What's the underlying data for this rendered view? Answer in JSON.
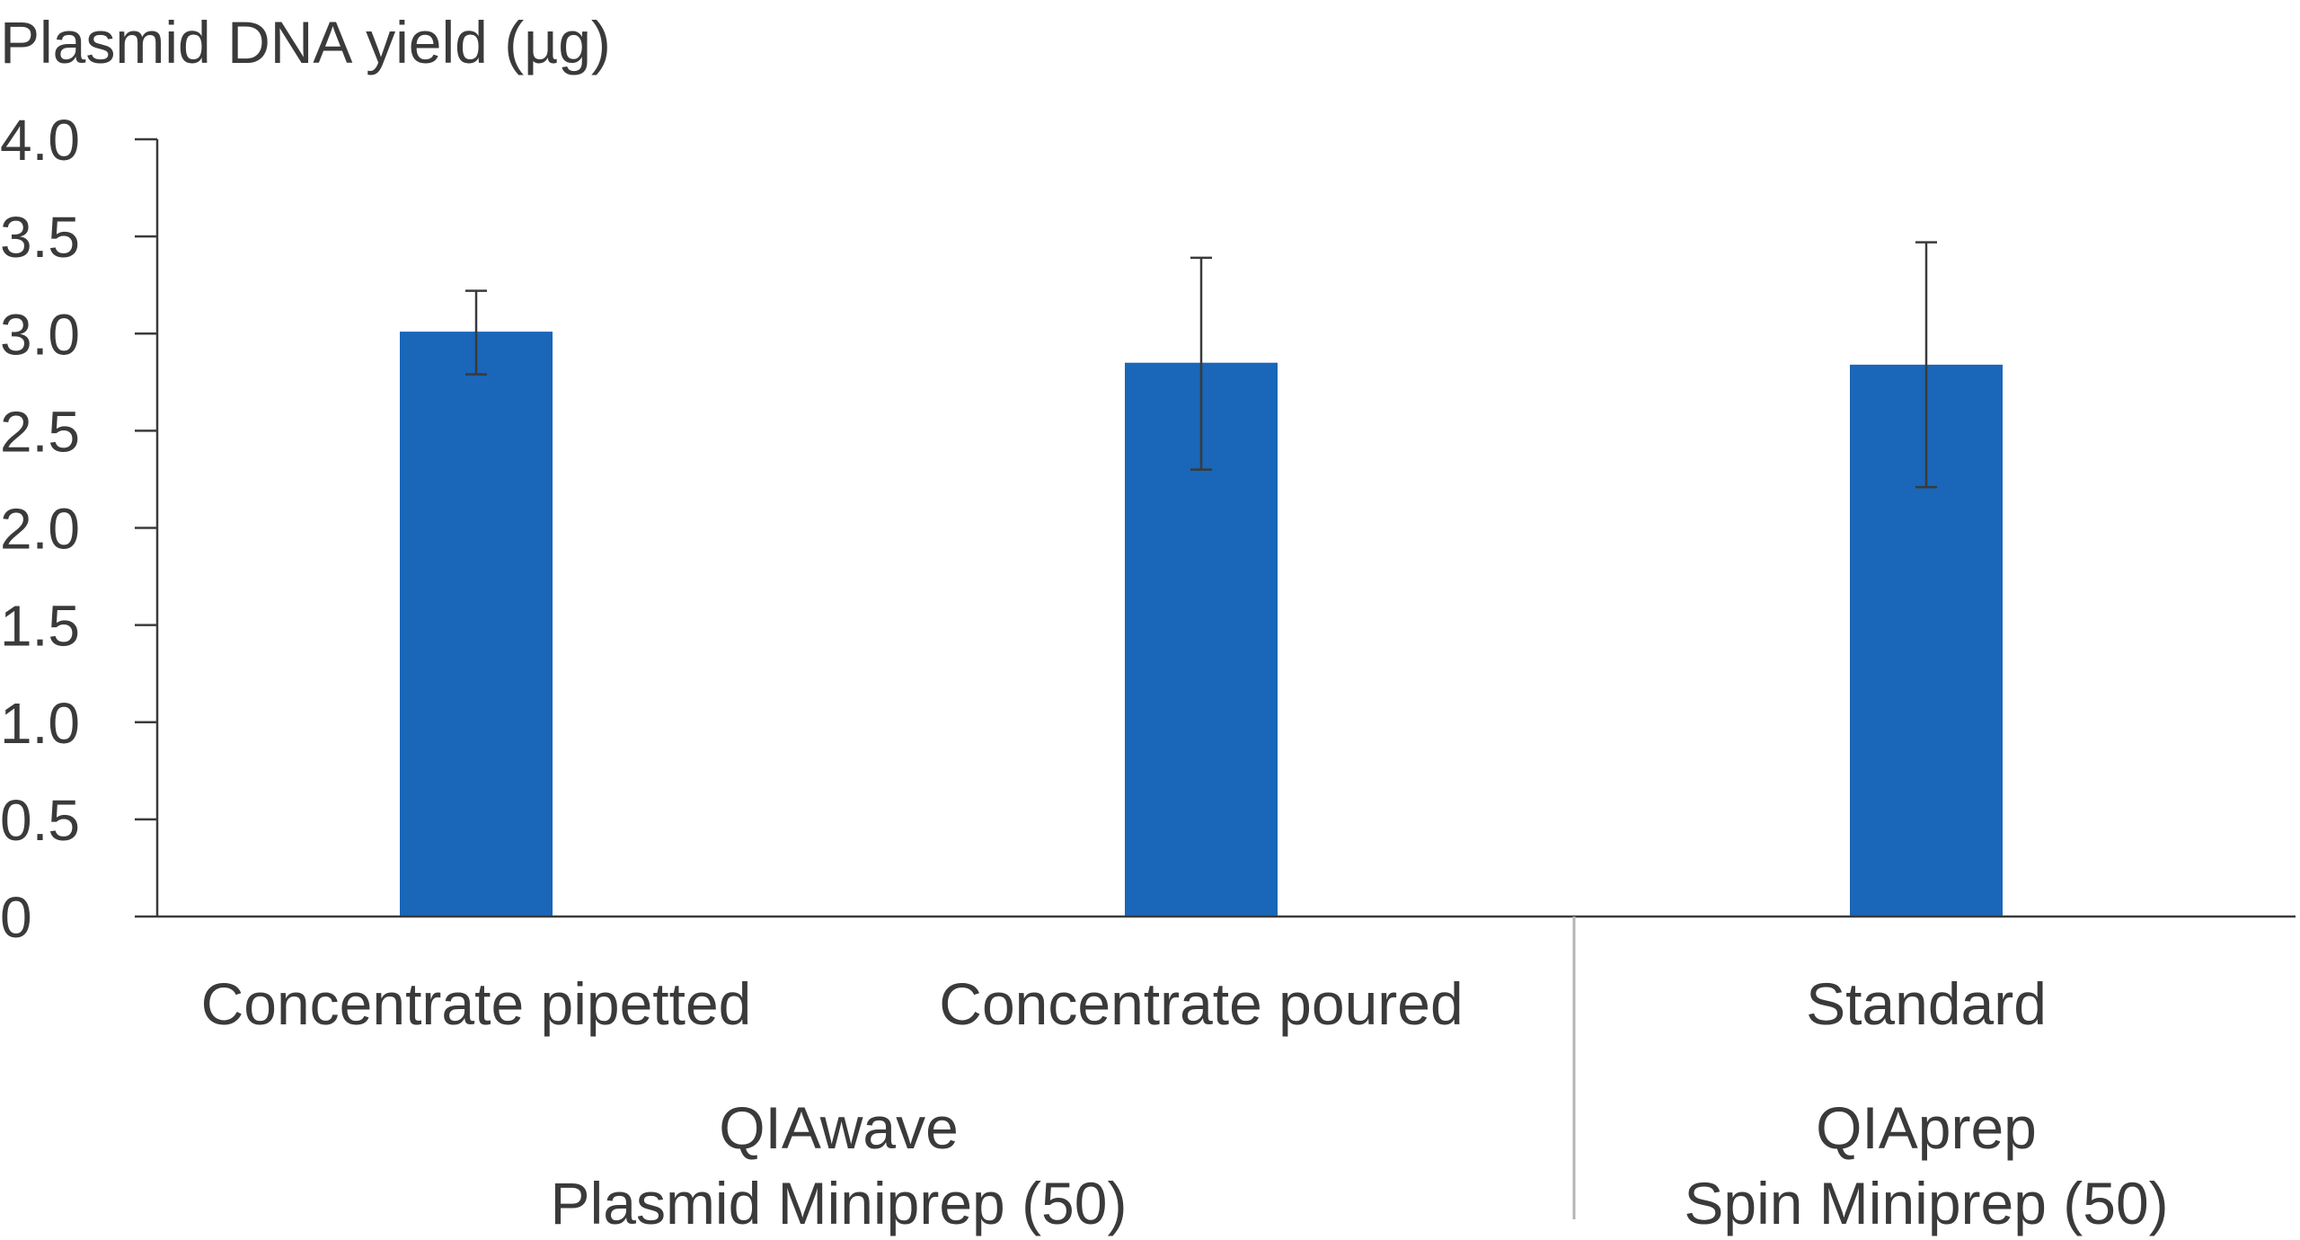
{
  "chart_data": {
    "type": "bar",
    "ylabel": "Plasmid DNA yield (µg)",
    "ylim": [
      0,
      4.0
    ],
    "yticks": [
      {
        "value": 0,
        "label": "0"
      },
      {
        "value": 0.5,
        "label": "0.5"
      },
      {
        "value": 1.0,
        "label": "1.0"
      },
      {
        "value": 1.5,
        "label": "1.5"
      },
      {
        "value": 2.0,
        "label": "2.0"
      },
      {
        "value": 2.5,
        "label": "2.5"
      },
      {
        "value": 3.0,
        "label": "3.0"
      },
      {
        "value": 3.5,
        "label": "3.5"
      },
      {
        "value": 4.0,
        "label": "4.0"
      }
    ],
    "categories": [
      "Concentrate pipetted",
      "Concentrate poured",
      "Standard"
    ],
    "values": [
      3.01,
      2.85,
      2.84
    ],
    "error_low": [
      2.79,
      2.3,
      2.21
    ],
    "error_high": [
      3.22,
      3.39,
      3.47
    ],
    "groups": [
      {
        "line1": "QIAwave",
        "line2": "Plasmid Miniprep (50)",
        "categories": [
          "Concentrate pipetted",
          "Concentrate poured"
        ]
      },
      {
        "line1": "QIAprep",
        "line2": "Spin Miniprep (50)",
        "categories": [
          "Standard"
        ]
      }
    ],
    "bar_color": "#1a66b8",
    "grid": false
  }
}
